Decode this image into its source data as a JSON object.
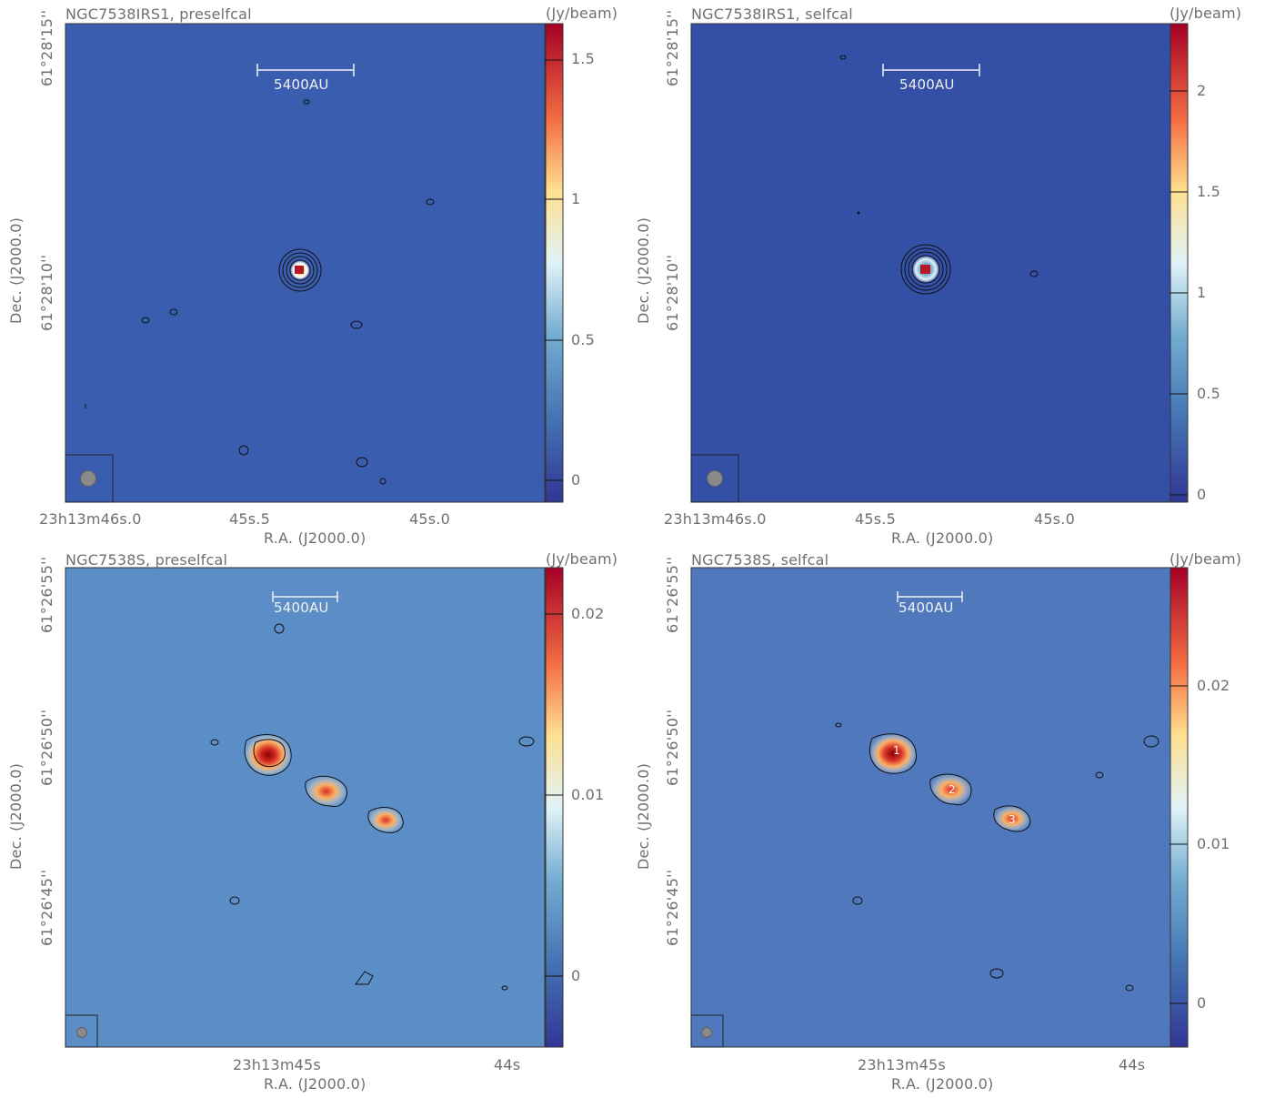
{
  "panels": [
    {
      "title": "NGC7538IRS1, preselfcal",
      "unit": "(Jy/beam)",
      "x_axis_label": "R.A. (J2000.0)",
      "y_axis_label": "Dec. (J2000.0)",
      "y_ticks": [
        "61°28'15''",
        "61°28'10''"
      ],
      "x_ticks": [
        "23h13m46s.0",
        "45s.5",
        "45s.0"
      ],
      "colorbar_ticks": [
        "1.5",
        "1",
        "0.5",
        "0"
      ],
      "scale_bar_label": "5400AU"
    },
    {
      "title": "NGC7538IRS1, selfcal",
      "unit": "(Jy/beam)",
      "x_axis_label": "R.A. (J2000.0)",
      "y_axis_label": "Dec. (J2000.0)",
      "y_ticks": [
        "61°28'15''",
        "61°28'10''"
      ],
      "x_ticks": [
        "23h13m46s.0",
        "45s.5",
        "45s.0"
      ],
      "colorbar_ticks": [
        "2",
        "1.5",
        "1",
        "0.5",
        "0"
      ],
      "scale_bar_label": "5400AU"
    },
    {
      "title": "NGC7538S, preselfcal",
      "unit": "(Jy/beam)",
      "x_axis_label": "R.A. (J2000.0)",
      "y_axis_label": "Dec. (J2000.0)",
      "y_ticks": [
        "61°26'55''",
        "61°26'50''",
        "61°26'45''"
      ],
      "x_ticks": [
        "23h13m45s",
        "44s"
      ],
      "colorbar_ticks": [
        "0.02",
        "0.01",
        "0"
      ],
      "scale_bar_label": "5400AU"
    },
    {
      "title": "NGC7538S, selfcal",
      "unit": "(Jy/beam)",
      "x_axis_label": "R.A. (J2000.0)",
      "y_axis_label": "Dec. (J2000.0)",
      "y_ticks": [
        "61°26'55''",
        "61°26'50''",
        "61°26'45''"
      ],
      "x_ticks": [
        "23h13m45s",
        "44s"
      ],
      "colorbar_ticks": [
        "0.02",
        "0.01",
        "0"
      ],
      "scale_bar_label": "5400AU",
      "source_labels": [
        "1",
        "2",
        "3"
      ]
    }
  ]
}
